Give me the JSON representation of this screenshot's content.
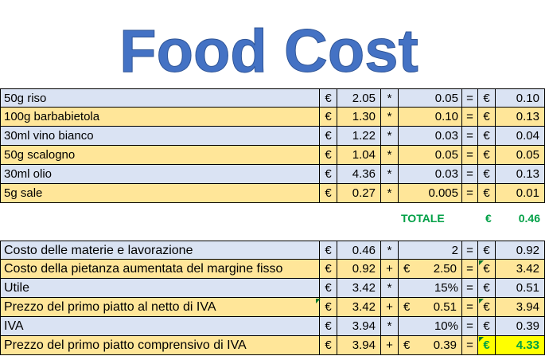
{
  "title": "Food Cost",
  "colors": {
    "title_blue": "#4472c4",
    "row_blue": "#dae3f3",
    "row_yellow": "#ffe699",
    "total_green": "#00a046",
    "highlight_yellow": "#ffff00"
  },
  "ingredients": [
    {
      "name": "50g riso",
      "currency": "€",
      "price": "2.05",
      "op": "*",
      "qty": "0.05",
      "eq": "=",
      "cur2": "€",
      "total": "0.10"
    },
    {
      "name": "100g barbabietola",
      "currency": "€",
      "price": "1.30",
      "op": "*",
      "qty": "0.10",
      "eq": "=",
      "cur2": "€",
      "total": "0.13"
    },
    {
      "name": "30ml vino bianco",
      "currency": "€",
      "price": "1.22",
      "op": "*",
      "qty": "0.03",
      "eq": "=",
      "cur2": "€",
      "total": "0.04"
    },
    {
      "name": "50g scalogno",
      "currency": "€",
      "price": "1.04",
      "op": "*",
      "qty": "0.05",
      "eq": "=",
      "cur2": "€",
      "total": "0.05"
    },
    {
      "name": "30ml olio",
      "currency": "€",
      "price": "4.36",
      "op": "*",
      "qty": "0.03",
      "eq": "=",
      "cur2": "€",
      "total": "0.13"
    },
    {
      "name": "5g sale",
      "currency": "€",
      "price": "0.27",
      "op": "*",
      "qty": "0.005",
      "eq": "=",
      "cur2": "€",
      "total": "0.01"
    }
  ],
  "totale": {
    "label": "TOTALE",
    "currency": "€",
    "value": "0.46"
  },
  "calc": [
    {
      "name": "Costo delle materie e lavorazione",
      "currency": "€",
      "price": "0.46",
      "op": "*",
      "cur_mid": "",
      "mid": "2",
      "eq": "=",
      "cur2": "€",
      "total": "0.92"
    },
    {
      "name": "Costo della pietanza aumentata del margine fisso",
      "currency": "€",
      "price": "0.92",
      "op": "+",
      "cur_mid": "€",
      "mid": "2.50",
      "eq": "=",
      "cur2": "€",
      "total": "3.42"
    },
    {
      "name": "Utile",
      "currency": "€",
      "price": "3.42",
      "op": "*",
      "cur_mid": "",
      "mid": "15%",
      "eq": "=",
      "cur2": "€",
      "total": "0.51"
    },
    {
      "name": "Prezzo del primo piatto al netto di IVA",
      "currency": "€",
      "price": "3.42",
      "op": "+",
      "cur_mid": "€",
      "mid": "0.51",
      "eq": "=",
      "cur2": "€",
      "total": "3.94"
    },
    {
      "name": "IVA",
      "currency": "€",
      "price": "3.94",
      "op": "*",
      "cur_mid": "",
      "mid": "10%",
      "eq": "=",
      "cur2": "€",
      "total": "0.39"
    },
    {
      "name": "Prezzo del primo piatto comprensivo di IVA",
      "currency": "€",
      "price": "3.94",
      "op": "+",
      "cur_mid": "€",
      "mid": "0.39",
      "eq": "=",
      "cur2": "€",
      "total": "4.33"
    }
  ]
}
